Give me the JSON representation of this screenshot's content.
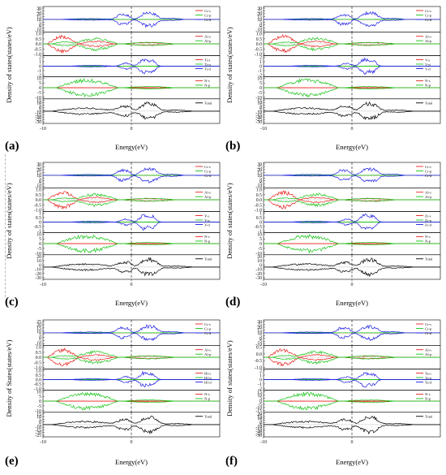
{
  "figure": {
    "panels": [
      {
        "letter": "(a)",
        "ylabel": "Density of states(states/eV)",
        "xlabel": "Energy(eV)",
        "rows": [
          {
            "ticks": [
              "30",
              "25",
              "20",
              "15",
              "10",
              "5",
              "0",
              "-5",
              "-10"
            ],
            "legend": [
              "Cr-s",
              "Cr-p",
              "Cr-d"
            ]
          },
          {
            "ticks": [
              "1.0",
              "0.5",
              "0.0",
              "-0.5",
              "-1.0"
            ],
            "legend": [
              "Al-s",
              "Al-p"
            ]
          },
          {
            "ticks": [
              "2",
              "1",
              "0",
              "-1",
              "-2"
            ],
            "legend": [
              "Ti-s",
              "Ti-p",
              "Ti-d"
            ]
          },
          {
            "ticks": [
              "10",
              "5",
              "0",
              "-5",
              "-10"
            ],
            "legend": [
              "N-s",
              "N-p"
            ]
          },
          {
            "ticks": [
              "15",
              "10",
              "5",
              "0",
              "-5",
              "-10",
              "-15",
              "-20",
              "-25",
              "-30"
            ],
            "legend": [
              "Total"
            ]
          }
        ]
      },
      {
        "letter": "(b)",
        "ylabel": "Density of states(states/eV)",
        "xlabel": "Energy(eV)",
        "rows": [
          {
            "ticks": [
              "30",
              "25",
              "20",
              "15",
              "10",
              "5",
              "0",
              "-5",
              "-10"
            ],
            "legend": [
              "Cr-s",
              "Cr-p",
              "Cr-d"
            ]
          },
          {
            "ticks": [
              "1.0",
              "0.5",
              "0.0",
              "-0.5",
              "-1.0"
            ],
            "legend": [
              "Al-s",
              "Al-p"
            ]
          },
          {
            "ticks": [
              "2",
              "1",
              "0",
              "-1",
              "-2"
            ],
            "legend": [
              "V-s",
              "V-p",
              "V-d"
            ]
          },
          {
            "ticks": [
              "10",
              "5",
              "0",
              "-5",
              "-10"
            ],
            "legend": [
              "N-s",
              "N-p"
            ]
          },
          {
            "ticks": [
              "15",
              "10",
              "5",
              "0",
              "-5",
              "-10",
              "-15",
              "-20",
              "-25",
              "-30"
            ],
            "legend": [
              "Total"
            ]
          }
        ]
      },
      {
        "letter": "(c)",
        "ylabel": "Density of states(states/eV)",
        "xlabel": "Energy(eV)",
        "rows": [
          {
            "ticks": [
              "30",
              "25",
              "20",
              "15",
              "10",
              "5",
              "0",
              "-5",
              "-10"
            ],
            "legend": [
              "Cr-s",
              "Cr-p",
              "Cr-d"
            ]
          },
          {
            "ticks": [
              "1.0",
              "0.5",
              "0.0",
              "-0.5",
              "-1.0"
            ],
            "legend": [
              "Al-s",
              "Al-p"
            ]
          },
          {
            "ticks": [
              "1",
              "0.5",
              "0",
              "-0.5",
              "-1"
            ],
            "legend": [
              "Y-s",
              "Y-p",
              "Y-d"
            ]
          },
          {
            "ticks": [
              "10",
              "5",
              "0",
              "-5",
              "-10"
            ],
            "legend": [
              "N-s",
              "N-p"
            ]
          },
          {
            "ticks": [
              "20",
              "10",
              "0",
              "-10",
              "-20",
              "-30"
            ],
            "legend": [
              "Total"
            ]
          }
        ]
      },
      {
        "letter": "(d)",
        "ylabel": "Density of states(states/eV)",
        "xlabel": "Energy(eV)",
        "rows": [
          {
            "ticks": [
              "30",
              "25",
              "20",
              "15",
              "10",
              "5",
              "0",
              "-5",
              "-10"
            ],
            "legend": [
              "Cr-s",
              "Cr-p",
              "Cr-d"
            ]
          },
          {
            "ticks": [
              "1.0",
              "0.5",
              "0.0",
              "-0.5",
              "-1.0"
            ],
            "legend": [
              "Al-s",
              "Al-p"
            ]
          },
          {
            "ticks": [
              "1",
              "0.5",
              "0",
              "-0.5",
              "-1"
            ],
            "legend": [
              "Zr-s",
              "Zr-p",
              "Zr-d"
            ]
          },
          {
            "ticks": [
              "10",
              "5",
              "0",
              "-5",
              "-10"
            ],
            "legend": [
              "N-s",
              "N-p"
            ]
          },
          {
            "ticks": [
              "20",
              "10",
              "0",
              "-10",
              "-20",
              "-30"
            ],
            "legend": [
              "Total"
            ]
          }
        ]
      },
      {
        "letter": "(e)",
        "ylabel": "Density of States(states/eV)",
        "xlabel": "Energy(eV)",
        "rows": [
          {
            "ticks": [
              "25",
              "20",
              "15",
              "10",
              "5",
              "0",
              "-5",
              "-10"
            ],
            "legend": [
              "Cr-s",
              "Cr-p",
              "Cr-d"
            ]
          },
          {
            "ticks": [
              "1.0",
              "0.5",
              "0.0",
              "-0.5",
              "-1.0"
            ],
            "legend": [
              "Al-s",
              "Al-p"
            ]
          },
          {
            "ticks": [
              "1.0",
              "0.5",
              "0.0",
              "-0.5",
              "-1.0"
            ],
            "legend": [
              "Hf-s",
              "Hf-p",
              "Hf-d"
            ]
          },
          {
            "ticks": [
              "10",
              "5",
              "0",
              "-5",
              "-10"
            ],
            "legend": [
              "N-s",
              "N-p"
            ]
          },
          {
            "ticks": [
              "15",
              "10",
              "5",
              "0",
              "-5",
              "-10",
              "-15",
              "-20",
              "-25"
            ],
            "legend": [
              "Total"
            ]
          }
        ]
      },
      {
        "letter": "(f)",
        "ylabel": "Density of states(states/eV)",
        "xlabel": "Energy(eV)",
        "rows": [
          {
            "ticks": [
              "30",
              "25",
              "20",
              "15",
              "10",
              "5",
              "0",
              "-5",
              "-10"
            ],
            "legend": [
              "Cr-s",
              "Cr-p",
              "Cr-d"
            ]
          },
          {
            "ticks": [
              "0.5",
              "0.0",
              "-0.5",
              "-1.0"
            ],
            "legend": [
              "Al-s",
              "Al-p"
            ]
          },
          {
            "ticks": [
              "2",
              "1",
              "0",
              "-1",
              "-2"
            ],
            "legend": [
              "Ta-s",
              "Ta-p",
              "Ta-d"
            ]
          },
          {
            "ticks": [
              "15",
              "10",
              "5",
              "0",
              "-5",
              "-10",
              "-15"
            ],
            "legend": [
              "N-s",
              "N-p"
            ]
          },
          {
            "ticks": [
              "20",
              "15",
              "10",
              "5",
              "0",
              "-5",
              "-10",
              "-15",
              "-20",
              "-25",
              "-30"
            ],
            "legend": [
              "Total"
            ]
          }
        ]
      }
    ]
  },
  "chart_data": {
    "type": "line",
    "x_axis": {
      "label": "Energy(eV)",
      "ticks": [
        -10,
        0
      ],
      "xlim": [
        -10,
        10
      ],
      "fermi_level_marker": 0
    },
    "series_colors": {
      "s": "#e8211d",
      "p": "#18c418",
      "d": "#1a1ae6",
      "total": "#000000"
    },
    "grid": false,
    "legend_placement": "right inside each subplot"
  }
}
